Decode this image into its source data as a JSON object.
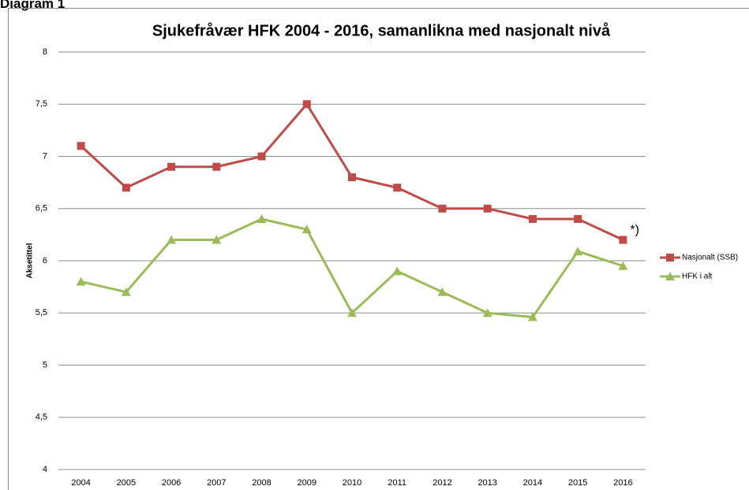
{
  "page_label": "Diagram 1",
  "chart_data": {
    "type": "line",
    "title": "Sjukefråvær HFK 2004 - 2016, samanlikna med nasjonalt nivå",
    "y_label": "Aksetittel",
    "annotation": "*)",
    "categories": [
      "2004",
      "2005",
      "2006",
      "2007",
      "2008",
      "2009",
      "2010",
      "2011",
      "2012",
      "2013",
      "2014",
      "2015",
      "2016"
    ],
    "series": [
      {
        "name": "Nasjonalt (SSB)",
        "color": "#be4b48",
        "marker": "square",
        "values": [
          7.1,
          6.7,
          6.9,
          6.9,
          7.0,
          7.5,
          6.8,
          6.7,
          6.5,
          6.5,
          6.4,
          6.4,
          6.2
        ]
      },
      {
        "name": "HFK i alt",
        "color": "#9bbb59",
        "marker": "triangle",
        "values": [
          5.8,
          5.7,
          6.2,
          6.2,
          6.4,
          6.3,
          5.5,
          5.9,
          5.7,
          5.5,
          5.46,
          6.09,
          5.95
        ]
      }
    ],
    "ylim": [
      4,
      8
    ],
    "yticks": [
      4,
      {
        "value": 4.5,
        "label": "4,5"
      },
      5,
      {
        "value": 5.5,
        "label": "5,5"
      },
      6,
      {
        "value": 6.5,
        "label": "6,5"
      },
      7,
      {
        "value": 7.5,
        "label": "7,5"
      },
      8
    ],
    "grid": true,
    "legend": "right"
  }
}
